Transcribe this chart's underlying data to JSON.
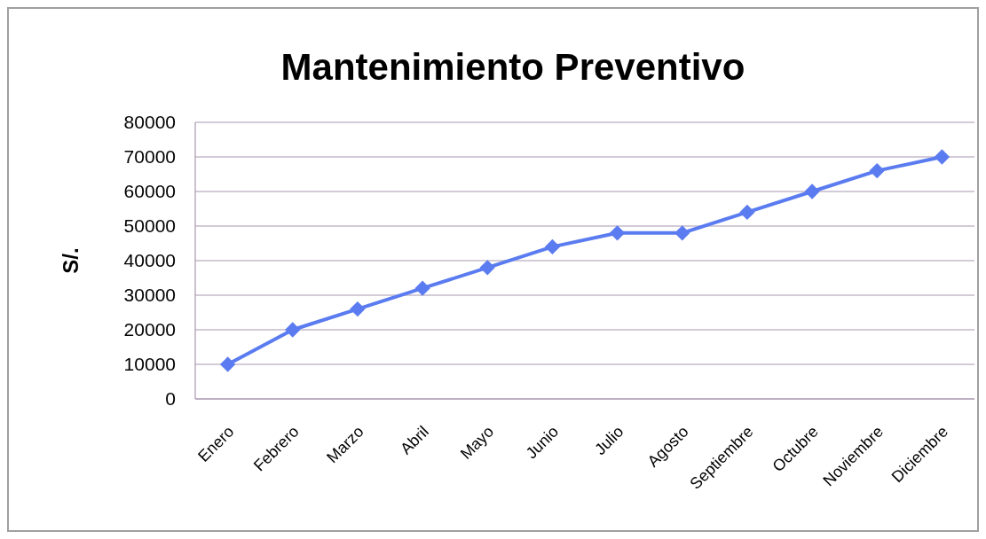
{
  "chart_data": {
    "type": "line",
    "title": "Mantenimiento Preventivo",
    "ylabel": "S/.",
    "categories": [
      "Enero",
      "Febrero",
      "Marzo",
      "Abril",
      "Mayo",
      "Junio",
      "Julio",
      "Agosto",
      "Septiembre",
      "Octubre",
      "Noviembre",
      "Diciembre"
    ],
    "series": [
      {
        "color": "#5b7cf0",
        "values": [
          10000,
          20000,
          26000,
          32000,
          38000,
          44000,
          48000,
          48000,
          54000,
          60000,
          66000,
          70000
        ]
      }
    ],
    "ylim": [
      0,
      80000
    ],
    "yticks": [
      0,
      10000,
      20000,
      30000,
      40000,
      50000,
      60000,
      70000,
      80000
    ],
    "grid": "y",
    "marker": "diamond",
    "line_style": "solid"
  }
}
